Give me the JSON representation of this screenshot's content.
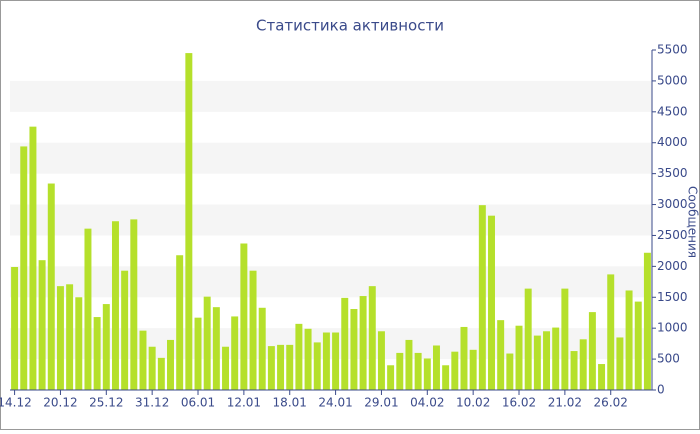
{
  "chart_data": {
    "type": "bar",
    "title": "Статистика активности",
    "y_label": "Сообщения",
    "categories": [
      "14.12",
      null,
      null,
      null,
      null,
      "20.12",
      null,
      null,
      null,
      null,
      "25.12",
      null,
      null,
      null,
      null,
      "31.12",
      null,
      null,
      null,
      null,
      "06.01",
      null,
      null,
      null,
      null,
      "12.01",
      null,
      null,
      null,
      null,
      "18.01",
      null,
      null,
      null,
      null,
      "24.01",
      null,
      null,
      null,
      null,
      "29.01",
      null,
      null,
      null,
      null,
      "04.02",
      null,
      null,
      null,
      null,
      "10.02",
      null,
      null,
      null,
      null,
      "16.02",
      null,
      null,
      null,
      null,
      "21.02",
      null,
      null,
      null,
      null,
      "26.02",
      null,
      null,
      null,
      null
    ],
    "values": [
      1990,
      3940,
      4260,
      2100,
      3340,
      1680,
      1710,
      1500,
      2610,
      1180,
      1390,
      2730,
      1930,
      2760,
      960,
      700,
      520,
      810,
      2180,
      5450,
      1170,
      1510,
      1340,
      700,
      1190,
      2370,
      1930,
      1330,
      710,
      730,
      730,
      1070,
      990,
      770,
      930,
      930,
      1490,
      1310,
      1520,
      1680,
      950,
      400,
      600,
      810,
      600,
      510,
      720,
      400,
      620,
      1020,
      650,
      2990,
      2820,
      1130,
      590,
      1040,
      1640,
      880,
      950,
      1010,
      1640,
      630,
      820,
      1260,
      420,
      1870,
      850,
      1610,
      1430,
      2220
    ],
    "color": "#b5e02b",
    "ylim": [
      0,
      5500
    ],
    "yticks": [
      0,
      500,
      1000,
      1500,
      2000,
      2500,
      3000,
      3500,
      4000,
      4500,
      5000,
      5500
    ],
    "grid": "bands"
  }
}
